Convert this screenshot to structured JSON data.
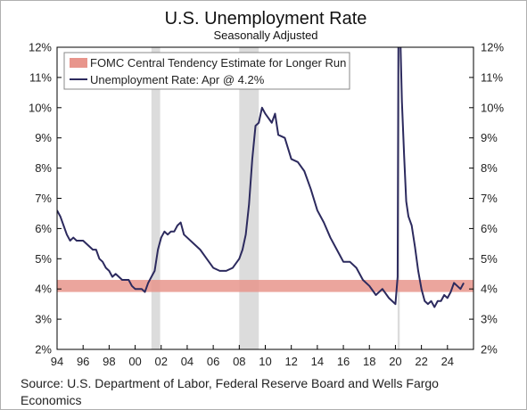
{
  "chart_data": {
    "type": "line",
    "title": "U.S. Unemployment Rate",
    "subtitle": "Seasonally Adjusted",
    "xlabel": "",
    "ylabel": "",
    "xlim": [
      1994,
      2026
    ],
    "ylim": [
      2,
      12
    ],
    "x_ticks": [
      {
        "x": 1994,
        "label": "94"
      },
      {
        "x": 1996,
        "label": "96"
      },
      {
        "x": 1998,
        "label": "98"
      },
      {
        "x": 2000,
        "label": "00"
      },
      {
        "x": 2002,
        "label": "02"
      },
      {
        "x": 2004,
        "label": "04"
      },
      {
        "x": 2006,
        "label": "06"
      },
      {
        "x": 2008,
        "label": "08"
      },
      {
        "x": 2010,
        "label": "10"
      },
      {
        "x": 2012,
        "label": "12"
      },
      {
        "x": 2014,
        "label": "14"
      },
      {
        "x": 2016,
        "label": "16"
      },
      {
        "x": 2018,
        "label": "18"
      },
      {
        "x": 2020,
        "label": "20"
      },
      {
        "x": 2022,
        "label": "22"
      },
      {
        "x": 2024,
        "label": "24"
      }
    ],
    "y_ticks": [
      {
        "y": 2,
        "label": "2%"
      },
      {
        "y": 3,
        "label": "3%"
      },
      {
        "y": 4,
        "label": "4%"
      },
      {
        "y": 5,
        "label": "5%"
      },
      {
        "y": 6,
        "label": "6%"
      },
      {
        "y": 7,
        "label": "7%"
      },
      {
        "y": 8,
        "label": "8%"
      },
      {
        "y": 9,
        "label": "9%"
      },
      {
        "y": 10,
        "label": "10%"
      },
      {
        "y": 11,
        "label": "11%"
      },
      {
        "y": 12,
        "label": "12%"
      }
    ],
    "recessions": [
      {
        "start": 2001.25,
        "end": 2001.92
      },
      {
        "start": 2008.0,
        "end": 2009.5
      },
      {
        "start": 2020.17,
        "end": 2020.33
      }
    ],
    "band": {
      "name": "FOMC Central Tendency Estimate for Longer Run",
      "low": 3.9,
      "high": 4.3,
      "color": "#e8958c"
    },
    "series": [
      {
        "name": "Unemployment Rate: Apr @ 4.2%",
        "color": "#2c2a5e",
        "x": [
          1994.0,
          1994.25,
          1994.5,
          1994.75,
          1995.0,
          1995.25,
          1995.5,
          1995.75,
          1996.0,
          1996.25,
          1996.5,
          1996.75,
          1997.0,
          1997.25,
          1997.5,
          1997.75,
          1998.0,
          1998.25,
          1998.5,
          1998.75,
          1999.0,
          1999.25,
          1999.5,
          1999.75,
          2000.0,
          2000.25,
          2000.5,
          2000.75,
          2001.0,
          2001.25,
          2001.5,
          2001.75,
          2002.0,
          2002.25,
          2002.5,
          2002.75,
          2003.0,
          2003.25,
          2003.5,
          2003.75,
          2004.0,
          2004.5,
          2005.0,
          2005.5,
          2006.0,
          2006.5,
          2007.0,
          2007.5,
          2008.0,
          2008.25,
          2008.5,
          2008.75,
          2009.0,
          2009.25,
          2009.5,
          2009.75,
          2010.0,
          2010.5,
          2010.75,
          2011.0,
          2011.5,
          2012.0,
          2012.5,
          2013.0,
          2013.5,
          2014.0,
          2014.5,
          2015.0,
          2015.5,
          2016.0,
          2016.5,
          2017.0,
          2017.5,
          2018.0,
          2018.5,
          2019.0,
          2019.5,
          2020.0,
          2020.17,
          2020.25,
          2020.33,
          2020.5,
          2020.67,
          2020.83,
          2021.0,
          2021.25,
          2021.5,
          2021.75,
          2022.0,
          2022.25,
          2022.5,
          2022.75,
          2023.0,
          2023.25,
          2023.5,
          2023.75,
          2024.0,
          2024.25,
          2024.5,
          2024.75,
          2025.0,
          2025.25
        ],
        "y": [
          6.6,
          6.4,
          6.1,
          5.8,
          5.6,
          5.7,
          5.6,
          5.6,
          5.6,
          5.5,
          5.4,
          5.3,
          5.3,
          5.0,
          4.9,
          4.7,
          4.6,
          4.4,
          4.5,
          4.4,
          4.3,
          4.3,
          4.3,
          4.1,
          4.0,
          4.0,
          4.0,
          3.9,
          4.2,
          4.4,
          4.6,
          5.3,
          5.7,
          5.9,
          5.8,
          5.9,
          5.9,
          6.1,
          6.2,
          5.8,
          5.7,
          5.5,
          5.3,
          5.0,
          4.7,
          4.6,
          4.6,
          4.7,
          5.0,
          5.3,
          5.8,
          6.8,
          8.3,
          9.4,
          9.5,
          10.0,
          9.8,
          9.5,
          9.8,
          9.1,
          9.0,
          8.3,
          8.2,
          7.9,
          7.3,
          6.6,
          6.2,
          5.7,
          5.3,
          4.9,
          4.9,
          4.7,
          4.3,
          4.1,
          3.8,
          4.0,
          3.7,
          3.5,
          4.4,
          14.7,
          13.2,
          10.2,
          8.4,
          6.9,
          6.4,
          6.1,
          5.4,
          4.6,
          4.0,
          3.6,
          3.5,
          3.6,
          3.4,
          3.6,
          3.6,
          3.8,
          3.7,
          3.9,
          4.2,
          4.1,
          4.0,
          4.2
        ]
      }
    ]
  },
  "footer": {
    "source": "Source: U.S. Department of Labor, Federal Reserve Board and Wells Fargo Economics"
  }
}
